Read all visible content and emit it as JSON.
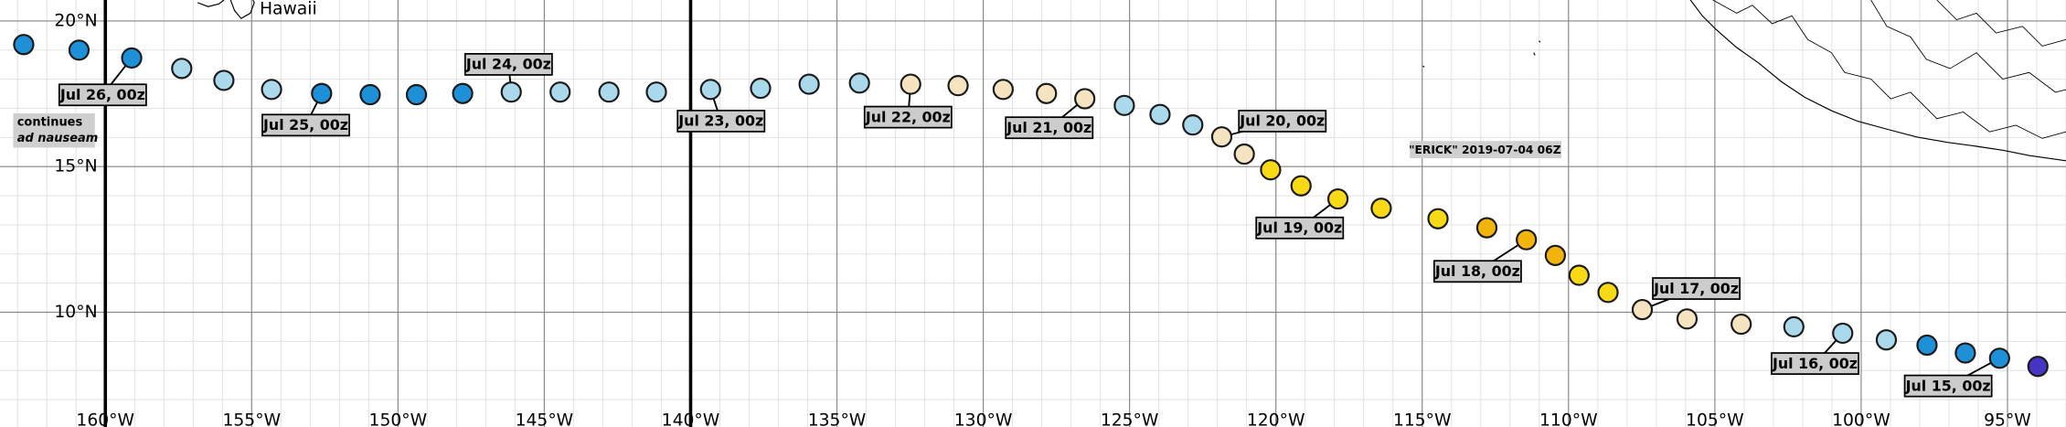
{
  "map": {
    "xlim": [
      -163.6,
      -93.0
    ],
    "ylim": [
      6.06,
      20.72
    ],
    "xticks": [
      {
        "value": -160,
        "label": "160°W"
      },
      {
        "value": -155,
        "label": "155°W"
      },
      {
        "value": -150,
        "label": "150°W"
      },
      {
        "value": -145,
        "label": "145°W"
      },
      {
        "value": -140,
        "label": "140°W"
      },
      {
        "value": -135,
        "label": "135°W"
      },
      {
        "value": -130,
        "label": "130°W"
      },
      {
        "value": -125,
        "label": "125°W"
      },
      {
        "value": -120,
        "label": "120°W"
      },
      {
        "value": -115,
        "label": "115°W"
      },
      {
        "value": -110,
        "label": "110°W"
      },
      {
        "value": -105,
        "label": "105°W"
      },
      {
        "value": -100,
        "label": "100°W"
      },
      {
        "value": -95,
        "label": "95°W"
      }
    ],
    "yticks": [
      {
        "value": 20,
        "label": "20°N"
      },
      {
        "value": 15,
        "label": "15°N"
      },
      {
        "value": 10,
        "label": "10°N"
      }
    ],
    "minor_grid_step": 1,
    "bold_meridians": [
      -160,
      -140
    ],
    "place": "Hawaii",
    "note": [
      "continues",
      "ad nauseam"
    ],
    "storm": "\"ERICK\" 2019-07-04 06Z",
    "track": {
      "lon": [
        -162.79,
        -160.9,
        -159.1,
        -157.39,
        -155.95,
        -154.32,
        -152.61,
        -150.95,
        -149.37,
        -147.79,
        -146.13,
        -144.46,
        -142.79,
        -141.17,
        -139.32,
        -137.61,
        -135.95,
        -134.23,
        -132.48,
        -130.86,
        -129.32,
        -127.84,
        -126.53,
        -125.18,
        -123.96,
        -122.84,
        -121.85,
        -121.08,
        -120.18,
        -119.14,
        -117.88,
        -116.4,
        -114.46,
        -112.79,
        -111.44,
        -110.45,
        -109.64,
        -108.65,
        -107.48,
        -105.95,
        -104.1,
        -102.3,
        -100.63,
        -99.14,
        -97.75,
        -96.44,
        -95.27,
        -93.96
      ],
      "lat": [
        19.19,
        19.0,
        18.73,
        18.37,
        17.96,
        17.65,
        17.51,
        17.47,
        17.47,
        17.51,
        17.56,
        17.56,
        17.56,
        17.56,
        17.65,
        17.69,
        17.83,
        17.87,
        17.83,
        17.78,
        17.65,
        17.51,
        17.33,
        17.1,
        16.79,
        16.43,
        16.02,
        15.43,
        14.89,
        14.34,
        13.89,
        13.57,
        13.21,
        12.9,
        12.49,
        11.95,
        11.27,
        10.68,
        10.09,
        9.77,
        9.59,
        9.5,
        9.28,
        9.05,
        8.87,
        8.6,
        8.42,
        8.14
      ],
      "colors": [
        "#1e90d8",
        "#1e90d8",
        "#1e90d8",
        "#a9d9eb",
        "#a9d9eb",
        "#a9d9eb",
        "#1e90d8",
        "#1e90d8",
        "#1e90d8",
        "#1e90d8",
        "#a9d9eb",
        "#a9d9eb",
        "#a9d9eb",
        "#a9d9eb",
        "#a9d9eb",
        "#a9d9eb",
        "#a9d9eb",
        "#a9d9eb",
        "#f5e4bf",
        "#f5e4bf",
        "#f5e4bf",
        "#f5e4bf",
        "#f5e4bf",
        "#a9d9eb",
        "#a9d9eb",
        "#a9d9eb",
        "#f5e4bf",
        "#f5e4bf",
        "#f7d916",
        "#f7d916",
        "#f7d916",
        "#f7d916",
        "#f7d916",
        "#f2b40c",
        "#f2b40c",
        "#f2b40c",
        "#f7d916",
        "#f7d916",
        "#f5e4bf",
        "#f5e4bf",
        "#f5e4bf",
        "#a9d9eb",
        "#a9d9eb",
        "#a9d9eb",
        "#1e90d8",
        "#1e90d8",
        "#1e90d8",
        "#4634c4"
      ],
      "time_labels": [
        null,
        null,
        "Jul 26, 00z",
        null,
        null,
        null,
        "Jul 25, 00z",
        null,
        null,
        null,
        "Jul 24, 00z",
        null,
        null,
        null,
        "Jul 23, 00z",
        null,
        null,
        null,
        "Jul 22, 00z",
        null,
        null,
        null,
        "Jul 21, 00z",
        null,
        null,
        null,
        "Jul 20, 00z",
        null,
        null,
        null,
        "Jul 19, 00z",
        null,
        null,
        null,
        "Jul 18, 00z",
        null,
        null,
        null,
        "Jul 17, 00z",
        null,
        null,
        null,
        "Jul 16, 00z",
        null,
        null,
        null,
        "Jul 15, 00z",
        null
      ]
    }
  }
}
